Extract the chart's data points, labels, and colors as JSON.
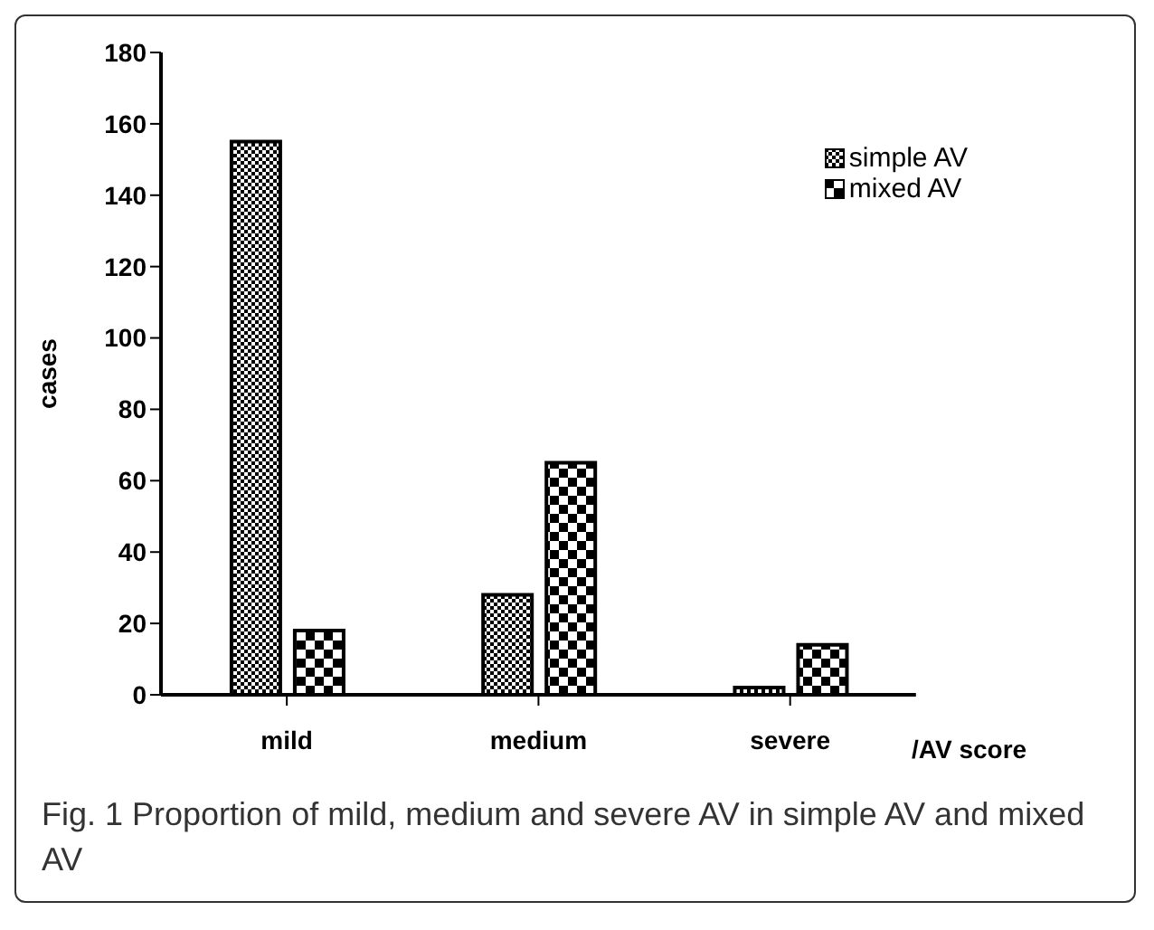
{
  "chart_data": {
    "type": "bar",
    "categories": [
      "mild",
      "medium",
      "severe"
    ],
    "series": [
      {
        "name": "simple AV",
        "color": "#000000",
        "values": [
          155,
          28,
          2
        ]
      },
      {
        "name": "mixed AV",
        "color": "#000000",
        "values": [
          18,
          65,
          14
        ]
      }
    ],
    "ylabel": "cases",
    "xlabel": "/AV score",
    "ylim": [
      0,
      180
    ],
    "yticks": [
      0,
      20,
      40,
      60,
      80,
      100,
      120,
      140,
      160,
      180
    ],
    "grid": false,
    "legend": "top right",
    "annotations": [
      "Fig. 1 Proportion of mild, medium and severe AV in simple AV and mixed AV"
    ]
  }
}
